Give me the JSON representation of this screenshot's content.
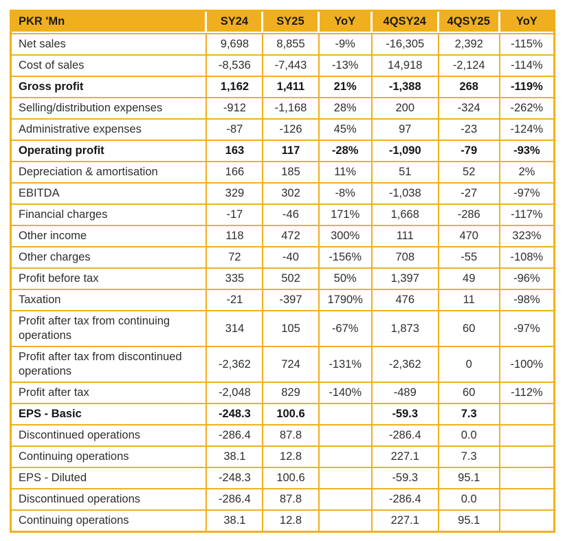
{
  "colors": {
    "amber": "#F0B01E",
    "header_text": "#1A1A1A",
    "body_text": "#2D2D2D",
    "cell_bg": "#FFFFFF"
  },
  "table": {
    "corner_label": "PKR 'Mn",
    "columns": [
      "SY24",
      "SY25",
      "YoY",
      "4QSY24",
      "4QSY25",
      "YoY"
    ],
    "rows": [
      {
        "label": "Net sales",
        "bold": false,
        "values": [
          "9,698",
          "8,855",
          "-9%",
          "-16,305",
          "2,392",
          "-115%"
        ]
      },
      {
        "label": "Cost of sales",
        "bold": false,
        "values": [
          "-8,536",
          "-7,443",
          "-13%",
          "14,918",
          "-2,124",
          "-114%"
        ]
      },
      {
        "label": "Gross profit",
        "bold": true,
        "values": [
          "1,162",
          "1,411",
          "21%",
          "-1,388",
          "268",
          "-119%"
        ]
      },
      {
        "label": "Selling/distribution expenses",
        "bold": false,
        "values": [
          "-912",
          "-1,168",
          "28%",
          "200",
          "-324",
          "-262%"
        ]
      },
      {
        "label": "Administrative expenses",
        "bold": false,
        "values": [
          "-87",
          "-126",
          "45%",
          "97",
          "-23",
          "-124%"
        ]
      },
      {
        "label": "Operating profit",
        "bold": true,
        "values": [
          "163",
          "117",
          "-28%",
          "-1,090",
          "-79",
          "-93%"
        ]
      },
      {
        "label": "Depreciation & amortisation",
        "bold": false,
        "values": [
          "166",
          "185",
          "11%",
          "51",
          "52",
          "2%"
        ]
      },
      {
        "label": "EBITDA",
        "bold": false,
        "values": [
          "329",
          "302",
          "-8%",
          "-1,038",
          "-27",
          "-97%"
        ]
      },
      {
        "label": "Financial charges",
        "bold": false,
        "values": [
          "-17",
          "-46",
          "171%",
          "1,668",
          "-286",
          "-117%"
        ]
      },
      {
        "label": "Other income",
        "bold": false,
        "values": [
          "118",
          "472",
          "300%",
          "111",
          "470",
          "323%"
        ]
      },
      {
        "label": "Other charges",
        "bold": false,
        "values": [
          "72",
          "-40",
          "-156%",
          "708",
          "-55",
          "-108%"
        ]
      },
      {
        "label": "Profit before tax",
        "bold": false,
        "values": [
          "335",
          "502",
          "50%",
          "1,397",
          "49",
          "-96%"
        ]
      },
      {
        "label": "Taxation",
        "bold": false,
        "values": [
          "-21",
          "-397",
          "1790%",
          "476",
          "11",
          "-98%"
        ]
      },
      {
        "label": "Profit after tax from continuing operations",
        "bold": false,
        "values": [
          "314",
          "105",
          "-67%",
          "1,873",
          "60",
          "-97%"
        ]
      },
      {
        "label": "Profit after tax from discontinued operations",
        "bold": false,
        "values": [
          "-2,362",
          "724",
          "-131%",
          "-2,362",
          "0",
          "-100%"
        ]
      },
      {
        "label": "Profit after tax",
        "bold": false,
        "values": [
          "-2,048",
          "829",
          "-140%",
          "-489",
          "60",
          "-112%"
        ]
      },
      {
        "label": "EPS - Basic",
        "bold": true,
        "values": [
          "-248.3",
          "100.6",
          "",
          "-59.3",
          "7.3",
          ""
        ]
      },
      {
        "label": "Discontinued operations",
        "bold": false,
        "values": [
          "-286.4",
          "87.8",
          "",
          "-286.4",
          "0.0",
          ""
        ]
      },
      {
        "label": "Continuing operations",
        "bold": false,
        "values": [
          "38.1",
          "12.8",
          "",
          "227.1",
          "7.3",
          ""
        ]
      },
      {
        "label": "EPS - Diluted",
        "bold": false,
        "values": [
          "-248.3",
          "100.6",
          "",
          "-59.3",
          "95.1",
          ""
        ]
      },
      {
        "label": "Discontinued operations",
        "bold": false,
        "values": [
          "-286.4",
          "87.8",
          "",
          "-286.4",
          "0.0",
          ""
        ]
      },
      {
        "label": "Continuing operations",
        "bold": false,
        "values": [
          "38.1",
          "12.8",
          "",
          "227.1",
          "95.1",
          ""
        ]
      }
    ]
  }
}
